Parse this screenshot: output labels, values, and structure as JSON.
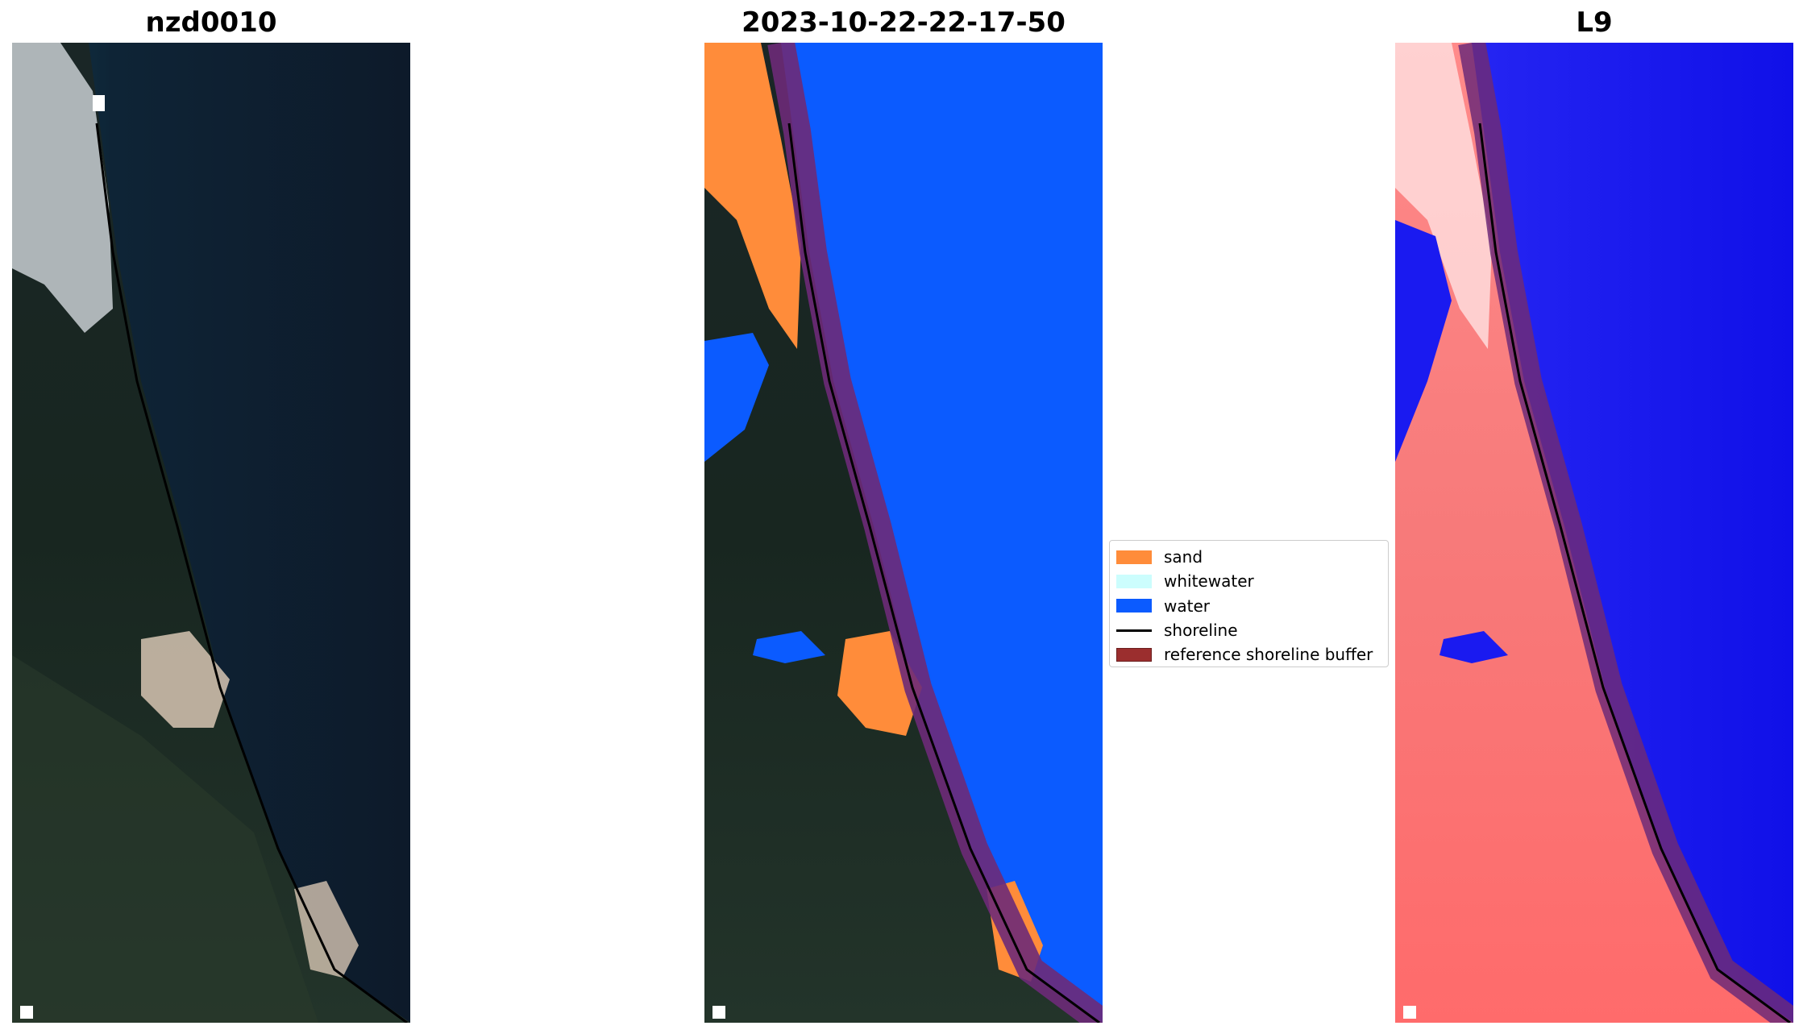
{
  "titles": {
    "left": "nzd0010",
    "middle": "2023-10-22-22-17-50",
    "right": "L9"
  },
  "legend": {
    "items": [
      {
        "label": "sand",
        "color": "#ff8c3a",
        "kind": "patch"
      },
      {
        "label": "whitewater",
        "color": "#ccfdfd",
        "kind": "patch"
      },
      {
        "label": "water",
        "color": "#0b5bff",
        "kind": "patch"
      },
      {
        "label": "shoreline",
        "color": "#000000",
        "kind": "line"
      },
      {
        "label": "reference shoreline buffer",
        "color": "#9b2e2e",
        "kind": "patch"
      }
    ]
  },
  "colors": {
    "ocean_rgb": "#0f1b2b",
    "land_dark": "#1a2a22",
    "sand": "#ff8c3a",
    "water": "#0b5bff",
    "buffer": "#6d2a78",
    "index_land": "#ff6b6b",
    "index_water": "#1515f0"
  }
}
